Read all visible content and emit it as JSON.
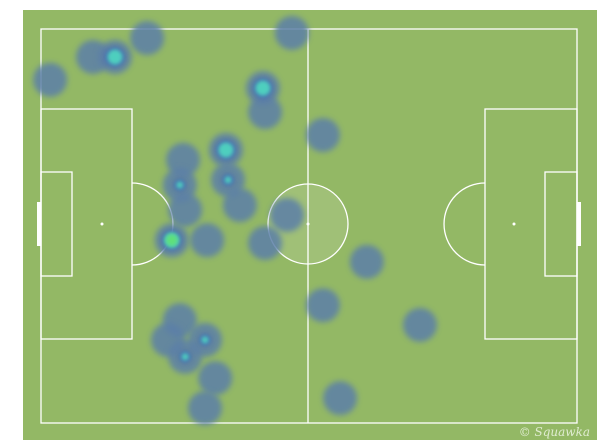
{
  "watermark": "Squawka",
  "colors": {
    "pitch": "#93b865",
    "lines": "#ffffff",
    "low": "#5b7fa8",
    "mid": "#4fd6c0",
    "high": "#5ee07a"
  },
  "chart_data": {
    "type": "heatmap",
    "background": "football-pitch",
    "x_range": [
      0,
      100
    ],
    "y_range": [
      0,
      100
    ],
    "points": [
      {
        "x": 1.7,
        "y": 12.9,
        "level": 1
      },
      {
        "x": 9.7,
        "y": 7.1,
        "level": 1
      },
      {
        "x": 13.8,
        "y": 7.1,
        "level": 3
      },
      {
        "x": 19.8,
        "y": 2.3,
        "level": 1
      },
      {
        "x": 46.8,
        "y": 1.0,
        "level": 1
      },
      {
        "x": 41.4,
        "y": 15.0,
        "level": 3
      },
      {
        "x": 41.8,
        "y": 21.1,
        "level": 1
      },
      {
        "x": 52.6,
        "y": 26.9,
        "level": 1
      },
      {
        "x": 34.5,
        "y": 30.7,
        "level": 3
      },
      {
        "x": 26.5,
        "y": 33.2,
        "level": 1
      },
      {
        "x": 25.9,
        "y": 39.6,
        "level": 2
      },
      {
        "x": 34.9,
        "y": 38.3,
        "level": 2
      },
      {
        "x": 37.1,
        "y": 44.7,
        "level": 1
      },
      {
        "x": 26.9,
        "y": 45.9,
        "level": 1
      },
      {
        "x": 24.4,
        "y": 53.6,
        "level": 4
      },
      {
        "x": 31.0,
        "y": 53.6,
        "level": 1
      },
      {
        "x": 45.9,
        "y": 47.2,
        "level": 1
      },
      {
        "x": 41.8,
        "y": 54.3,
        "level": 1
      },
      {
        "x": 60.8,
        "y": 59.1,
        "level": 1
      },
      {
        "x": 52.6,
        "y": 70.1,
        "level": 1
      },
      {
        "x": 70.7,
        "y": 75.1,
        "level": 1
      },
      {
        "x": 25.9,
        "y": 73.9,
        "level": 1
      },
      {
        "x": 23.7,
        "y": 78.9,
        "level": 1
      },
      {
        "x": 30.6,
        "y": 78.9,
        "level": 2
      },
      {
        "x": 26.9,
        "y": 83.2,
        "level": 2
      },
      {
        "x": 32.5,
        "y": 88.6,
        "level": 1
      },
      {
        "x": 30.6,
        "y": 96.2,
        "level": 1
      },
      {
        "x": 55.8,
        "y": 93.7,
        "level": 1
      }
    ]
  }
}
